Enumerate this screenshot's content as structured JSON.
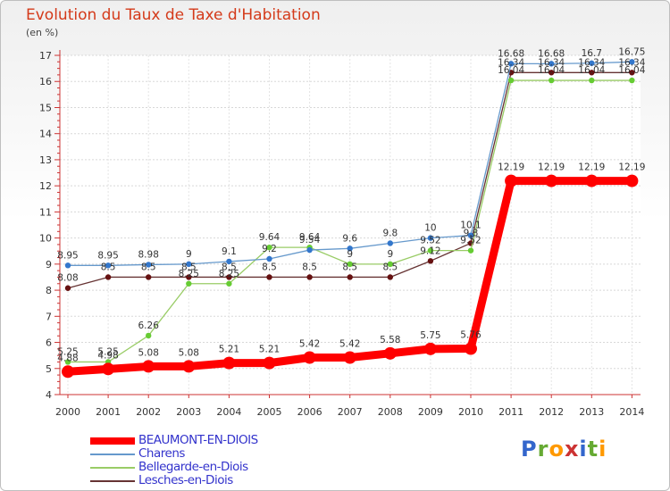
{
  "title": "Evolution du Taux de Taxe d'Habitation",
  "unit_label": "(en %)",
  "logo_text": "Proxiti",
  "chart_data": {
    "type": "line",
    "title": "Evolution du Taux de Taxe d'Habitation",
    "ylabel": "(en %)",
    "xlabel": "",
    "x": [
      "2000",
      "2001",
      "2002",
      "2003",
      "2004",
      "2005",
      "2006",
      "2007",
      "2008",
      "2009",
      "2010",
      "2011",
      "2012",
      "2013",
      "2014"
    ],
    "ylim": [
      4,
      17
    ],
    "yticks": [
      4,
      5,
      6,
      7,
      8,
      9,
      10,
      11,
      12,
      13,
      14,
      15,
      16,
      17
    ],
    "grid": true,
    "legend_position": "bottom-left",
    "series": [
      {
        "name": "BEAUMONT-EN-DIOIS",
        "color": "#ff0000",
        "values": [
          4.88,
          4.98,
          5.08,
          5.08,
          5.21,
          5.21,
          5.42,
          5.42,
          5.58,
          5.75,
          5.76,
          12.19,
          12.19,
          12.19,
          12.19
        ],
        "labels": [
          "4.88",
          "4.98",
          "5.08",
          "5.08",
          "5.21",
          "5.21",
          "5.42",
          "5.42",
          "5.58",
          "5.75",
          "5.76",
          "12.19",
          "12.19",
          "12.19",
          "12.19"
        ]
      },
      {
        "name": "Charens",
        "color": "#6699cc",
        "values": [
          8.95,
          8.95,
          8.98,
          9.0,
          9.1,
          9.2,
          9.54,
          9.6,
          9.8,
          10.0,
          10.1,
          16.68,
          16.68,
          16.7,
          16.75
        ],
        "labels": [
          "8.95",
          "8.95",
          "8.98",
          "9",
          "9.1",
          "9.2",
          "9.54",
          "9.6",
          "9.8",
          "10",
          "10.1",
          "16.68",
          "16.68",
          "16.7",
          "16.75"
        ]
      },
      {
        "name": "Bellegarde-en-Diois",
        "color": "#99cc66",
        "values": [
          5.25,
          5.25,
          6.26,
          8.25,
          8.25,
          9.64,
          9.64,
          9.0,
          9.0,
          9.52,
          9.52,
          16.04,
          16.04,
          16.04,
          16.04
        ],
        "labels": [
          "5.25",
          "5.25",
          "6.26",
          "8.25",
          "8.25",
          "9.64",
          "9.64",
          "9",
          "9",
          "9.52",
          "9.52",
          "16.04",
          "16.04",
          "16.04",
          "16.04"
        ]
      },
      {
        "name": "Lesches-en-Diois",
        "color": "#663333",
        "values": [
          8.08,
          8.5,
          8.5,
          8.5,
          8.5,
          8.5,
          8.5,
          8.5,
          8.5,
          9.12,
          9.8,
          16.34,
          16.34,
          16.34,
          16.34
        ],
        "labels": [
          "8.08",
          "8.5",
          "8.5",
          "8.5",
          "8.5",
          "8.5",
          "8.5",
          "8.5",
          "8.5",
          "9.12",
          "9.8",
          "16.34",
          "16.34",
          "16.34",
          "16.34"
        ]
      }
    ]
  }
}
